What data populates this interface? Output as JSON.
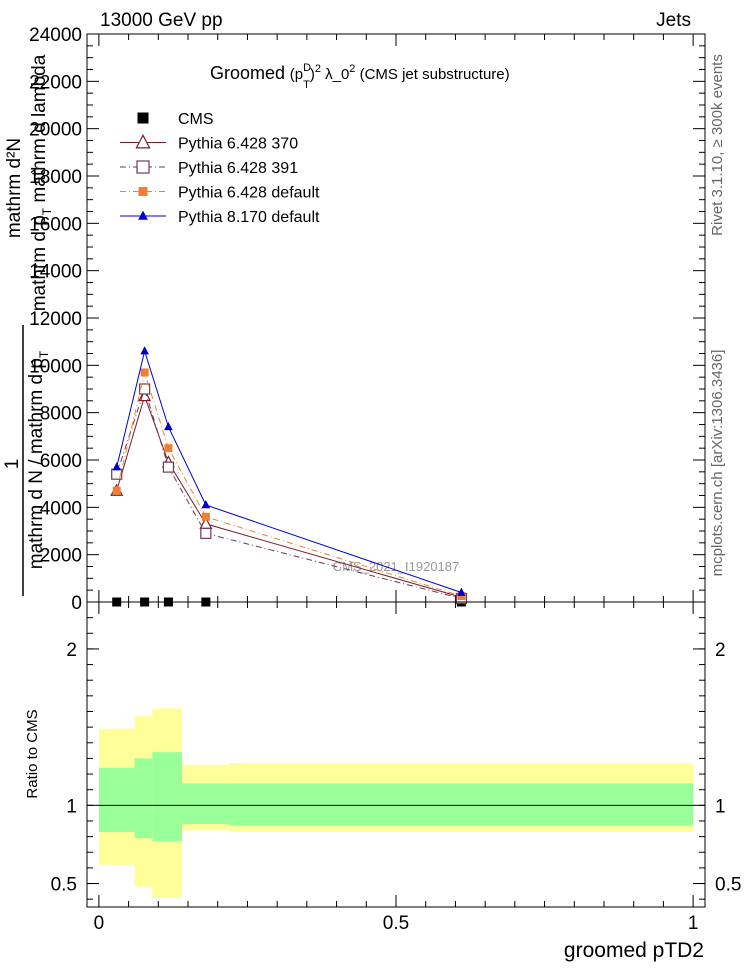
{
  "header": {
    "left": "13000 GeV pp",
    "right": "Jets"
  },
  "side_labels": {
    "rivet": "Rivet 3.1.10, ≥ 300k events",
    "mcplots": "mcplots.cern.ch [arXiv:1306.3436]"
  },
  "watermark": "CMS_2021_I1920187",
  "chart_data": [
    {
      "type": "line",
      "panel": "main",
      "title": {
        "prefix": "Groomed",
        "math_p": "(p",
        "math_sup_d": "D",
        "math_sub_t": "T",
        "math_close": ")",
        "math_sup_2": "2",
        "math_lambda": "λ_0",
        "math_sup_2b": "2",
        "suffix": "(CMS jet substructure)"
      },
      "ylabel": {
        "line1": "mathrm d²N",
        "line2": "mathrm d p",
        "line2_sub": "T",
        "line2_rest": "mathrm d lambda",
        "line3": "1",
        "line4": "mathrm d N / mathrm d p",
        "line4_sub": "T"
      },
      "xlim": [
        -0.02,
        1.02
      ],
      "ylim": [
        0,
        24000
      ],
      "yticks": [
        0,
        2000,
        4000,
        6000,
        8000,
        10000,
        12000,
        14000,
        16000,
        18000,
        20000,
        22000,
        24000
      ],
      "ytick_labels": [
        "0",
        "2000",
        "4000",
        "6000",
        "8000",
        "10000",
        "12000",
        "14000",
        "16000",
        "18000",
        "20000",
        "22000",
        "24000"
      ],
      "legend_position": "top-left",
      "series": [
        {
          "name": "CMS",
          "color": "#000000",
          "marker": "filled-square",
          "line": "none",
          "x": [
            0.03,
            0.077,
            0.117,
            0.18,
            0.61
          ],
          "y": [
            0,
            0,
            0,
            0,
            0
          ]
        },
        {
          "name": "Pythia 6.428 370",
          "color": "#7a1d2a",
          "marker": "open-triangle",
          "line": "solid",
          "x": [
            0.03,
            0.077,
            0.117,
            0.18,
            0.61
          ],
          "y": [
            4700,
            8700,
            5900,
            3300,
            200
          ]
        },
        {
          "name": "Pythia 6.428 391",
          "color": "#6b3a5a",
          "marker": "open-square",
          "line": "dashdot",
          "x": [
            0.03,
            0.077,
            0.117,
            0.18,
            0.61
          ],
          "y": [
            5400,
            9000,
            5700,
            2900,
            150
          ]
        },
        {
          "name": "Pythia 6.428 default",
          "color": "#f08030",
          "marker": "filled-square",
          "line": "dashdot",
          "x": [
            0.03,
            0.077,
            0.117,
            0.18,
            0.61
          ],
          "y": [
            4700,
            9700,
            6500,
            3600,
            250
          ]
        },
        {
          "name": "Pythia 8.170 default",
          "color": "#0000cc",
          "marker": "filled-triangle",
          "line": "solid",
          "x": [
            0.03,
            0.077,
            0.117,
            0.18,
            0.61
          ],
          "y": [
            5700,
            10600,
            7400,
            4100,
            400
          ]
        }
      ]
    },
    {
      "type": "area",
      "panel": "ratio",
      "ylabel": "Ratio to CMS",
      "xlabel": "groomed pTD2",
      "xlim": [
        -0.02,
        1.02
      ],
      "ylim": [
        0.35,
        2.3
      ],
      "yticks": [
        0.5,
        1,
        2
      ],
      "ytick_labels": [
        "0.5",
        "1",
        "2"
      ],
      "xticks": [
        0,
        0.5,
        1
      ],
      "xtick_labels": [
        "0",
        "0.5",
        "1"
      ],
      "reference_line": 1,
      "bands": {
        "edges": [
          0,
          0.06,
          0.09,
          0.14,
          0.22,
          1
        ],
        "yellow_color": "#ffff99",
        "green_color": "#99ff99",
        "yellow_low": [
          0.62,
          0.48,
          0.41,
          0.84,
          0.83
        ],
        "yellow_high": [
          1.49,
          1.57,
          1.62,
          1.26,
          1.27
        ],
        "green_low": [
          0.83,
          0.79,
          0.77,
          0.88,
          0.87
        ],
        "green_high": [
          1.24,
          1.3,
          1.34,
          1.14,
          1.14
        ]
      }
    }
  ]
}
